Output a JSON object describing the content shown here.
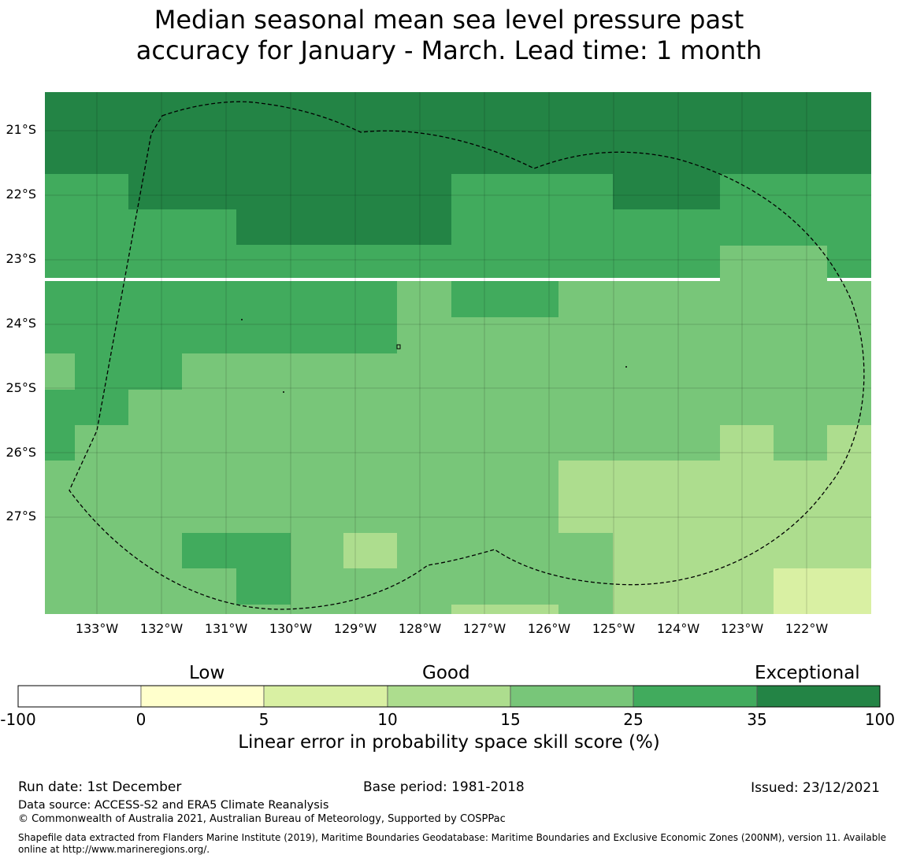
{
  "title_line1": "Median seasonal mean sea level pressure past",
  "title_line2": "accuracy for January - March. Lead time: 1 month",
  "map": {
    "lat_labels": [
      "21°S",
      "22°S",
      "23°S",
      "24°S",
      "25°S",
      "26°S",
      "27°S"
    ],
    "lon_labels": [
      "133°W",
      "132°W",
      "131°W",
      "130°W",
      "129°W",
      "128°W",
      "127°W",
      "126°W",
      "125°W",
      "124°W",
      "123°W",
      "122°W"
    ],
    "class_colors": {
      "exceptional_35_100": "#238445",
      "25_35": "#41ab5d",
      "15_25": "#78c679",
      "10_15": "#addd8e",
      "5_10": "#d9f0a3",
      "0_5": "#ffffcc"
    }
  },
  "colorbar": {
    "categories": [
      "Low",
      "Good",
      "Exceptional"
    ],
    "ticks": [
      "-100",
      "0",
      "5",
      "10",
      "15",
      "25",
      "35",
      "100"
    ],
    "colors": [
      "#ffffff",
      "#ffffcc",
      "#d9f0a3",
      "#addd8e",
      "#78c679",
      "#41ab5d",
      "#238445"
    ],
    "label": "Linear error in probability space skill score (%)"
  },
  "footer": {
    "run_date": "Run date: 1st December",
    "base_period": "Base period: 1981-2018",
    "issued": "Issued: 23/12/2021",
    "data_source": "Data source: ACCESS-S2 and ERA5 Climate Reanalysis",
    "copyright": "© Commonwealth of Australia 2021, Australian Bureau of Meteorology, Supported by COSPPac",
    "shapefile_line1": "Shapefile data extracted from Flanders Marine Institute (2019), Maritime Boundaries Geodatabase: Maritime Boundaries and Exclusive Economic Zones (200NM), version 11. Available",
    "shapefile_line2": "online at http://www.marineregions.org/."
  }
}
